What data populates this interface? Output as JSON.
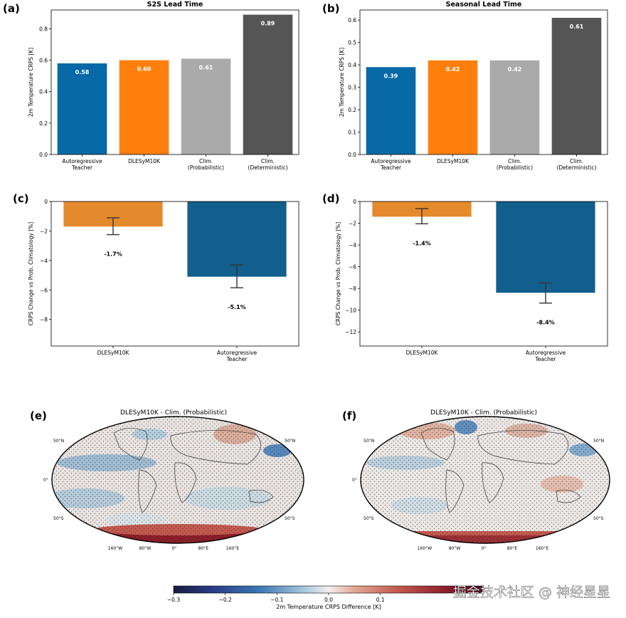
{
  "colors": {
    "autoregressive": "#0769a5",
    "dlesym": "#ff7f0e",
    "clim_prob": "#aaaaaa",
    "clim_det": "#555555",
    "c_dlesym": "#e58a2c",
    "c_auto": "#125e8c"
  },
  "chart_data": [
    {
      "panel": "(a)",
      "type": "bar",
      "title": "S2S Lead Time",
      "ylabel": "2m Temperature CRPS [K]",
      "ylim": [
        0,
        0.92
      ],
      "yticks": [
        0.0,
        0.2,
        0.4,
        0.6,
        0.8
      ],
      "ytick_labels": [
        "0.0",
        "0.2",
        "0.4",
        "0.6",
        "0.8"
      ],
      "categories": [
        [
          "Autoregressive",
          "Teacher"
        ],
        [
          "DLESyM10K"
        ],
        [
          "Clim.",
          "(Probabilistic)"
        ],
        [
          "Clim.",
          "(Deterministic)"
        ]
      ],
      "values": [
        0.58,
        0.6,
        0.61,
        0.89
      ],
      "value_labels": [
        "0.58",
        "0.60",
        "0.61",
        "0.89"
      ]
    },
    {
      "panel": "(b)",
      "type": "bar",
      "title": "Seasonal Lead Time",
      "ylabel": "2m Temperature CRPS [K]",
      "ylim": [
        0,
        0.645
      ],
      "yticks": [
        0.0,
        0.1,
        0.2,
        0.3,
        0.4,
        0.5,
        0.6
      ],
      "ytick_labels": [
        "0.0",
        "0.1",
        "0.2",
        "0.3",
        "0.4",
        "0.5",
        "0.6"
      ],
      "categories": [
        [
          "Autoregressive",
          "Teacher"
        ],
        [
          "DLESyM10K"
        ],
        [
          "Clim.",
          "(Probabilistic)"
        ],
        [
          "Clim.",
          "(Deterministic)"
        ]
      ],
      "values": [
        0.39,
        0.42,
        0.42,
        0.61
      ],
      "value_labels": [
        "0.39",
        "0.42",
        "0.42",
        "0.61"
      ]
    },
    {
      "panel": "(c)",
      "type": "bar",
      "title": "",
      "ylabel": "CRPS Change vs Prob. Climatology [%]",
      "ylim": [
        -9.8,
        0
      ],
      "yticks": [
        0,
        -2,
        -4,
        -6,
        -8
      ],
      "ytick_labels": [
        "0",
        "−2",
        "−4",
        "−6",
        "−8"
      ],
      "categories": [
        [
          "DLESyM10K"
        ],
        [
          "Autoregressive",
          "Teacher"
        ]
      ],
      "values": [
        -1.7,
        -5.1
      ],
      "err_low": [
        -2.25,
        -5.85
      ],
      "err_high": [
        -1.1,
        -4.3
      ],
      "value_labels": [
        "-1.7%",
        "-5.1%"
      ]
    },
    {
      "panel": "(d)",
      "type": "bar",
      "title": "",
      "ylabel": "CRPS Change vs Prob. Climatology [%]",
      "ylim": [
        -13.3,
        0
      ],
      "yticks": [
        0,
        -2,
        -4,
        -6,
        -8,
        -10,
        -12
      ],
      "ytick_labels": [
        "0",
        "−2",
        "−4",
        "−6",
        "−8",
        "−10",
        "−12"
      ],
      "categories": [
        [
          "DLESyM10K"
        ],
        [
          "Autoregressive",
          "Teacher"
        ]
      ],
      "values": [
        -1.4,
        -8.4
      ],
      "err_low": [
        -2.05,
        -9.35
      ],
      "err_high": [
        -0.65,
        -7.5
      ],
      "value_labels": [
        "-1.4%",
        "-8.4%"
      ]
    },
    {
      "panel": "(e)",
      "type": "heatmap",
      "title": "DLESyM10K - Clim. (Probabilistic)",
      "lat_labels": [
        "50°N",
        "0°",
        "50°S"
      ],
      "lon_labels": [
        "160°W",
        "80°W",
        "0°",
        "80°E",
        "160°E"
      ]
    },
    {
      "panel": "(f)",
      "type": "heatmap",
      "title": "DLESyM10K - Clim. (Probabilistic)",
      "lat_labels": [
        "50°N",
        "0°",
        "50°S"
      ],
      "lon_labels": [
        "160°W",
        "80°W",
        "0°",
        "80°E",
        "160°E"
      ]
    }
  ],
  "colorbar": {
    "label": "2m Temperature CRPS Difference [K]",
    "range": [
      -0.3,
      0.3
    ],
    "ticks": [
      -0.3,
      -0.2,
      -0.1,
      0.0,
      0.1
    ],
    "tick_labels": [
      "−0.3",
      "−0.2",
      "−0.1",
      "0.0",
      "0.1"
    ]
  },
  "watermark": "掘金技术社区 @ 神经星星"
}
